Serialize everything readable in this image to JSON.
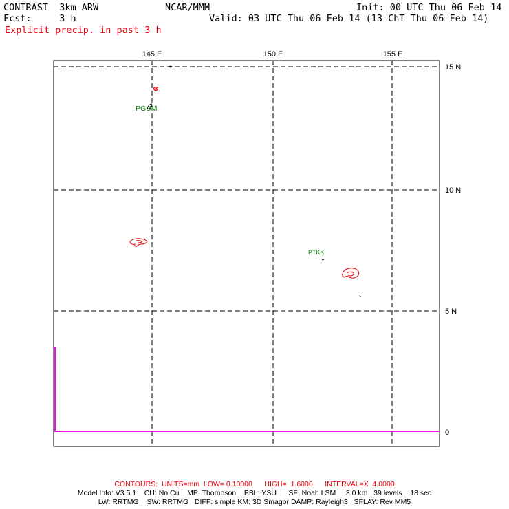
{
  "header": {
    "model": "CONTRAST  3km ARW",
    "forecast": "Fcst:     3 h",
    "center": "NCAR/MMM",
    "init": "Init: 00 UTC Thu 06 Feb 14",
    "valid": "Valid: 03 UTC Thu 06 Feb 14 (13 ChT Thu 06 Feb 14)",
    "field": "Explicit precip. in past 3 h"
  },
  "map": {
    "lon_labels": [
      "145 E",
      "150 E",
      "155 E"
    ],
    "lat_labels": [
      "15 N",
      "10 N",
      "5 N"
    ],
    "lat_units_label": "0",
    "stations": [
      {
        "id": "PGUM"
      },
      {
        "id": "PTKK"
      }
    ],
    "colors": {
      "grid": "#000000",
      "coast": "#000000",
      "precip_contour": "#e8000b",
      "station": "#007a00",
      "boundary": "#ff00ff"
    }
  },
  "footer": {
    "contours": "CONTOURS:  UNITS=mm  LOW= 0.10000      HIGH=  1.6000      INTERVAL=X  4.0000",
    "model_info": "Model Info: V3.5.1    CU: No Cu    MP: Thompson    PBL: YSU      SF: Noah LSM     3.0 km   39 levels    18 sec",
    "model_info2": "LW: RRTMG    SW: RRTMG   DIFF: simple KM: 3D Smagor DAMP: Rayleigh3   SFLAY: Rev MM5"
  }
}
